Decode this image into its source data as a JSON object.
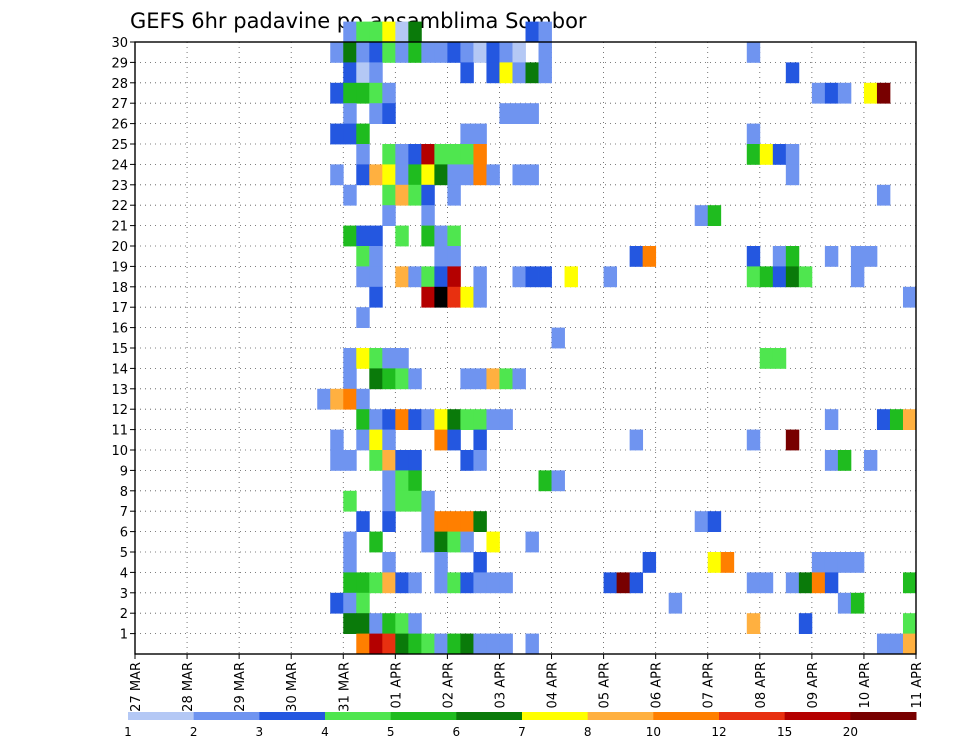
{
  "chart_data": {
    "type": "heatmap",
    "title": "GEFS 6hr padavine po ansamblima Sombor",
    "xlabel": "",
    "ylabel": "",
    "x_tick_labels": [
      "27 MAR",
      "28 MAR",
      "29 MAR",
      "30 MAR",
      "31 MAR",
      "01 APR",
      "02 APR",
      "03 APR",
      "04 APR",
      "05 APR",
      "06 APR",
      "07 APR",
      "08 APR",
      "09 APR",
      "10 APR",
      "11 APR"
    ],
    "y_tick_labels": [
      "1",
      "2",
      "3",
      "4",
      "5",
      "6",
      "7",
      "8",
      "9",
      "10",
      "11",
      "12",
      "13",
      "14",
      "15",
      "16",
      "17",
      "18",
      "19",
      "20",
      "21",
      "22",
      "23",
      "24",
      "25",
      "26",
      "27",
      "28",
      "29",
      "30"
    ],
    "y_range": [
      0,
      30
    ],
    "x_range_days": [
      0,
      15
    ],
    "grid": "dotted",
    "colorbar": {
      "labels": [
        "1",
        "2",
        "3",
        "4",
        "5",
        "6",
        "7",
        "8",
        "10",
        "12",
        "15",
        "20"
      ],
      "colors": [
        "#b4c8f5",
        "#6f94f0",
        "#2457e0",
        "#4fe64f",
        "#1fbc1f",
        "#0a7a0a",
        "#ffff00",
        "#ffb040",
        "#ff7f00",
        "#e83010",
        "#b40000",
        "#780000"
      ]
    },
    "cells": [
      {
        "member": 30,
        "x": [
          4.0,
          4.25,
          4.5,
          4.75,
          5.0,
          5.25,
          7.5,
          7.75
        ],
        "v": [
          1,
          3,
          3,
          6,
          0,
          5,
          2,
          1
        ]
      },
      {
        "member": 29,
        "x": [
          3.75,
          4.0,
          4.25,
          4.5,
          4.75,
          5.0,
          5.25,
          5.5,
          5.75,
          6.0,
          6.25,
          6.5,
          6.75,
          7.0,
          7.25,
          7.75,
          11.75
        ],
        "v": [
          1,
          5,
          1,
          2,
          3,
          1,
          4,
          1,
          1,
          2,
          1,
          0,
          2,
          1,
          0,
          1,
          1
        ]
      },
      {
        "member": 28,
        "x": [
          4.0,
          4.25,
          4.5,
          6.25,
          6.75,
          7.0,
          7.25,
          7.5,
          7.75,
          12.5
        ],
        "v": [
          2,
          0,
          1,
          2,
          2,
          6,
          1,
          5,
          1,
          2
        ]
      },
      {
        "member": 27,
        "x": [
          3.75,
          4.0,
          4.25,
          4.5,
          4.75,
          13.0,
          13.25,
          13.5,
          14.0,
          14.25
        ],
        "v": [
          2,
          4,
          4,
          3,
          1,
          1,
          2,
          1,
          6,
          11
        ]
      },
      {
        "member": 26,
        "x": [
          4.0,
          4.5,
          4.75,
          7.0,
          7.25,
          7.5
        ],
        "v": [
          1,
          1,
          2,
          1,
          1,
          1
        ]
      },
      {
        "member": 25,
        "x": [
          3.75,
          4.0,
          4.25,
          6.25,
          6.5,
          11.75
        ],
        "v": [
          2,
          2,
          4,
          1,
          1,
          1
        ]
      },
      {
        "member": 24,
        "x": [
          4.25,
          4.75,
          5.0,
          5.25,
          5.5,
          5.75,
          6.0,
          6.25,
          6.5,
          11.75,
          12.0,
          12.25,
          12.5
        ],
        "v": [
          1,
          3,
          1,
          2,
          10,
          3,
          3,
          3,
          8,
          4,
          6,
          2,
          1
        ]
      },
      {
        "member": 23,
        "x": [
          3.75,
          4.25,
          4.5,
          4.75,
          5.0,
          5.25,
          5.5,
          5.75,
          6.0,
          6.25,
          6.5,
          6.75,
          7.25,
          7.5,
          12.5
        ],
        "v": [
          1,
          2,
          7,
          6,
          1,
          4,
          6,
          5,
          1,
          1,
          8,
          1,
          1,
          1,
          1
        ]
      },
      {
        "member": 22,
        "x": [
          4.0,
          4.75,
          5.0,
          5.25,
          5.5,
          6.0,
          14.25
        ],
        "v": [
          1,
          3,
          7,
          3,
          2,
          1,
          1
        ]
      },
      {
        "member": 21,
        "x": [
          4.75,
          5.5,
          10.75,
          11.0
        ],
        "v": [
          1,
          1,
          1,
          4
        ]
      },
      {
        "member": 20,
        "x": [
          4.0,
          4.25,
          4.5,
          5.0,
          5.5,
          5.75,
          6.0
        ],
        "v": [
          4,
          2,
          2,
          3,
          4,
          1,
          3
        ]
      },
      {
        "member": 19,
        "x": [
          4.25,
          4.5,
          5.75,
          6.0,
          9.5,
          9.75,
          11.75,
          12.25,
          12.5,
          13.25,
          13.75,
          14.0
        ],
        "v": [
          3,
          1,
          1,
          1,
          2,
          8,
          2,
          1,
          4,
          1,
          1,
          1
        ]
      },
      {
        "member": 18,
        "x": [
          4.25,
          4.5,
          5.0,
          5.25,
          5.5,
          5.75,
          6.0,
          6.5,
          7.25,
          7.5,
          7.75,
          8.25,
          9.0,
          11.75,
          12.0,
          12.25,
          12.5,
          12.75,
          13.75
        ],
        "v": [
          1,
          1,
          7,
          1,
          3,
          2,
          10,
          1,
          1,
          2,
          2,
          6,
          1,
          3,
          4,
          2,
          5,
          3,
          1
        ]
      },
      {
        "member": 17,
        "x": [
          4.5,
          5.5,
          5.75,
          6.0,
          6.25,
          6.5,
          14.75
        ],
        "v": [
          2,
          10,
          12,
          9,
          6,
          1,
          1
        ]
      },
      {
        "member": 16,
        "x": [
          4.25
        ],
        "v": [
          1
        ]
      },
      {
        "member": 15,
        "x": [
          8.0
        ],
        "v": [
          1
        ]
      },
      {
        "member": 14,
        "x": [
          4.0,
          4.25,
          4.5,
          4.75,
          5.0,
          12.0,
          12.25
        ],
        "v": [
          1,
          6,
          3,
          1,
          1,
          3,
          3
        ]
      },
      {
        "member": 13,
        "x": [
          4.0,
          4.5,
          4.75,
          5.0,
          5.25,
          6.25,
          6.5,
          6.75,
          7.0,
          7.25
        ],
        "v": [
          1,
          5,
          4,
          3,
          1,
          1,
          1,
          7,
          3,
          1
        ]
      },
      {
        "member": 12,
        "x": [
          3.5,
          3.75,
          4.0,
          4.25
        ],
        "v": [
          1,
          7,
          8,
          1
        ]
      },
      {
        "member": 11,
        "x": [
          4.25,
          4.5,
          4.75,
          5.0,
          5.25,
          5.5,
          5.75,
          6.0,
          6.25,
          6.5,
          6.75,
          7.0,
          13.25,
          14.25,
          14.5,
          14.75
        ],
        "v": [
          4,
          1,
          2,
          8,
          2,
          1,
          6,
          5,
          3,
          3,
          1,
          1,
          1,
          2,
          4,
          7
        ]
      },
      {
        "member": 10,
        "x": [
          3.75,
          4.25,
          4.5,
          4.75,
          5.75,
          6.0,
          6.5,
          9.5,
          11.75,
          12.5
        ],
        "v": [
          1,
          1,
          6,
          1,
          8,
          2,
          2,
          1,
          1,
          11
        ]
      },
      {
        "member": 9,
        "x": [
          3.75,
          4.0,
          4.5,
          4.75,
          5.0,
          5.25,
          6.25,
          6.5,
          13.25,
          13.5,
          14.0
        ],
        "v": [
          1,
          1,
          3,
          7,
          2,
          2,
          2,
          1,
          1,
          4,
          1
        ]
      },
      {
        "member": 8,
        "x": [
          4.75,
          5.0,
          5.25,
          7.75,
          8.0
        ],
        "v": [
          1,
          3,
          4,
          4,
          1
        ]
      },
      {
        "member": 7,
        "x": [
          4.0,
          4.75,
          5.0,
          5.25,
          5.5
        ],
        "v": [
          3,
          1,
          3,
          3,
          1
        ]
      },
      {
        "member": 6,
        "x": [
          4.25,
          4.75,
          5.5,
          5.75,
          6.0,
          6.25,
          6.5,
          10.75,
          11.0
        ],
        "v": [
          2,
          2,
          1,
          8,
          8,
          8,
          5,
          1,
          2
        ]
      },
      {
        "member": 5,
        "x": [
          4.0,
          4.5,
          5.5,
          5.75,
          6.0,
          6.25,
          6.75,
          7.5
        ],
        "v": [
          1,
          4,
          1,
          5,
          3,
          1,
          6,
          1
        ]
      },
      {
        "member": 4,
        "x": [
          4.0,
          4.75,
          5.75,
          6.5,
          9.75,
          11.0,
          11.25,
          13.0,
          13.25,
          13.5,
          13.75
        ],
        "v": [
          1,
          1,
          1,
          2,
          2,
          6,
          8,
          1,
          1,
          1,
          1
        ]
      },
      {
        "member": 3,
        "x": [
          4.0,
          4.25,
          4.5,
          4.75,
          5.0,
          5.25,
          5.75,
          6.0,
          6.25,
          6.5,
          6.75,
          7.0,
          9.0,
          9.25,
          9.5,
          11.75,
          12.0,
          12.5,
          12.75,
          13.0,
          13.25,
          14.75
        ],
        "v": [
          4,
          4,
          3,
          7,
          2,
          1,
          1,
          3,
          2,
          1,
          1,
          1,
          2,
          11,
          2,
          1,
          1,
          1,
          5,
          8,
          2,
          4
        ]
      },
      {
        "member": 2,
        "x": [
          3.75,
          4.0,
          4.25,
          10.25,
          13.5,
          13.75
        ],
        "v": [
          2,
          1,
          3,
          1,
          1,
          4
        ]
      },
      {
        "member": 1,
        "x": [
          4.0,
          4.25,
          4.5,
          4.75,
          5.0,
          5.25,
          11.75,
          12.75,
          14.75
        ],
        "v": [
          5,
          5,
          1,
          4,
          3,
          1,
          7,
          2,
          3
        ]
      },
      {
        "member": 0,
        "x": [
          4.25,
          4.5,
          4.75,
          5.0,
          5.25,
          5.5,
          5.75,
          6.0,
          6.25,
          6.5,
          6.75,
          7.0,
          7.5,
          14.25,
          14.5,
          14.75
        ],
        "v": [
          8,
          10,
          9,
          5,
          4,
          3,
          1,
          4,
          5,
          1,
          1,
          1,
          1,
          1,
          1,
          7
        ]
      }
    ]
  }
}
